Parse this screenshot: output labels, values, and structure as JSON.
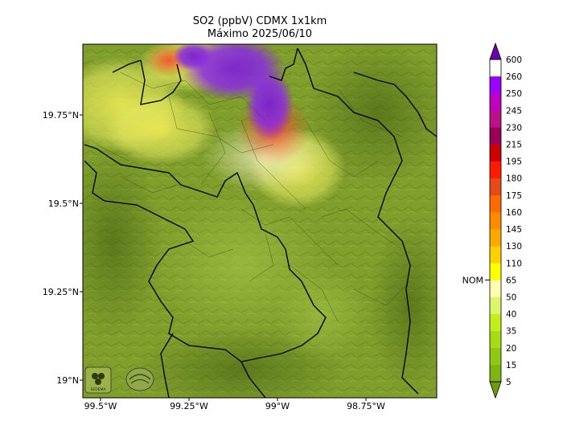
{
  "map": {
    "title_line1": "SO2 (ppbV) CDMX 1x1km",
    "title_line2": "Máximo 2025/06/10",
    "lon_ticks": [
      {
        "value": -99.5,
        "label": "99.5°W"
      },
      {
        "value": -99.25,
        "label": "99.25°W"
      },
      {
        "value": -99.0,
        "label": "99°W"
      },
      {
        "value": -98.75,
        "label": "98.75°W"
      }
    ],
    "lat_ticks": [
      {
        "value": 19.75,
        "label": "19.75°N"
      },
      {
        "value": 19.5,
        "label": "19.5°N"
      },
      {
        "value": 19.25,
        "label": "19.25°N"
      },
      {
        "value": 19.0,
        "label": "19°N"
      }
    ],
    "lon_range": [
      -99.55,
      -98.55
    ],
    "lat_range": [
      18.95,
      19.95
    ],
    "colorbar": {
      "levels": [
        "5",
        "15",
        "20",
        "35",
        "40",
        "50",
        "65",
        "110",
        "130",
        "145",
        "160",
        "175",
        "180",
        "195",
        "215",
        "230",
        "245",
        "250",
        "260",
        "600"
      ],
      "colors": [
        "#6e9b10",
        "#80b410",
        "#8fc812",
        "#a6dc14",
        "#c2ee1a",
        "#dcf56a",
        "#ffffb0",
        "#ffff00",
        "#ffd000",
        "#ffa800",
        "#ff8c00",
        "#ff6a00",
        "#e64a19",
        "#ff1a00",
        "#cc0000",
        "#990055",
        "#bb1188",
        "#c000c0",
        "#9b00ff",
        "#6a00b0"
      ],
      "nom_label": "NOM",
      "nom_level": "65"
    },
    "logos": [
      {
        "name": "sedema-logo",
        "text": "SEDEMA"
      },
      {
        "name": "atmosfera-logo",
        "text": ""
      }
    ]
  }
}
